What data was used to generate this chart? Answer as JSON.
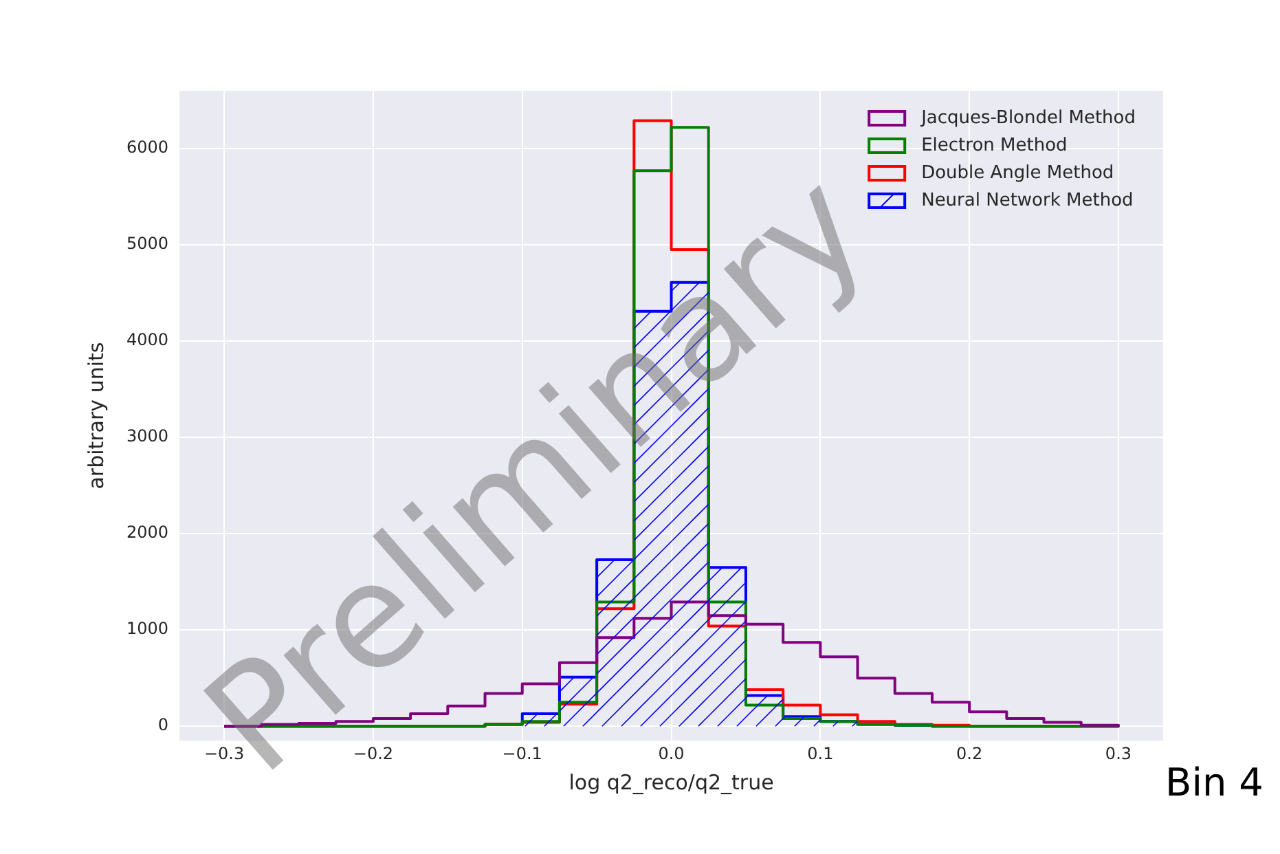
{
  "chart_data": {
    "type": "histogram",
    "xlabel": "log q2_reco/q2_true",
    "ylabel": "arbitrary units",
    "bins": [
      -0.3,
      -0.275,
      -0.25,
      -0.225,
      -0.2,
      -0.175,
      -0.15,
      -0.125,
      -0.1,
      -0.075,
      -0.05,
      -0.025,
      0,
      0.025,
      0.05,
      0.075,
      0.1,
      0.125,
      0.15,
      0.175,
      0.2,
      0.225,
      0.25,
      0.275,
      0.3
    ],
    "series": [
      {
        "name": "Jacques-Blondel Method",
        "color": "#800080",
        "values": [
          0,
          20,
          30,
          50,
          80,
          130,
          210,
          340,
          440,
          660,
          920,
          1120,
          1290,
          1150,
          1060,
          870,
          720,
          500,
          340,
          250,
          150,
          80,
          40,
          10
        ]
      },
      {
        "name": "Electron Method",
        "color": "#008000",
        "values": [
          0,
          0,
          0,
          0,
          0,
          0,
          0,
          20,
          50,
          250,
          1290,
          5770,
          6220,
          1290,
          220,
          80,
          50,
          20,
          10,
          0,
          0,
          0,
          0,
          0
        ]
      },
      {
        "name": "Double Angle Method",
        "color": "#ff0000",
        "values": [
          0,
          0,
          0,
          0,
          0,
          0,
          0,
          20,
          40,
          230,
          1220,
          6290,
          4950,
          1040,
          380,
          220,
          120,
          50,
          20,
          10,
          0,
          0,
          0,
          0
        ]
      },
      {
        "name": "Neural Network Method",
        "color": "#0000ff",
        "values": [
          0,
          0,
          0,
          0,
          0,
          0,
          0,
          20,
          130,
          510,
          1730,
          4310,
          4610,
          1650,
          320,
          100,
          50,
          20,
          10,
          0,
          0,
          0,
          0,
          0
        ]
      }
    ],
    "xlim": [
      -0.33,
      0.33
    ],
    "xticks": [
      {
        "value": -0.3,
        "label": "−0.3"
      },
      {
        "value": -0.2,
        "label": "−0.2"
      },
      {
        "value": -0.1,
        "label": "−0.1"
      },
      {
        "value": 0,
        "label": "0.0"
      },
      {
        "value": 0.1,
        "label": "0.1"
      },
      {
        "value": 0.2,
        "label": "0.2"
      },
      {
        "value": 0.3,
        "label": "0.3"
      }
    ],
    "ylim": [
      -150,
      6600
    ],
    "yticks": [
      0,
      1000,
      2000,
      3000,
      4000,
      5000,
      6000
    ],
    "grid": true,
    "legend": "top right",
    "annotations": [
      "Preliminary",
      "Bin 4"
    ]
  }
}
